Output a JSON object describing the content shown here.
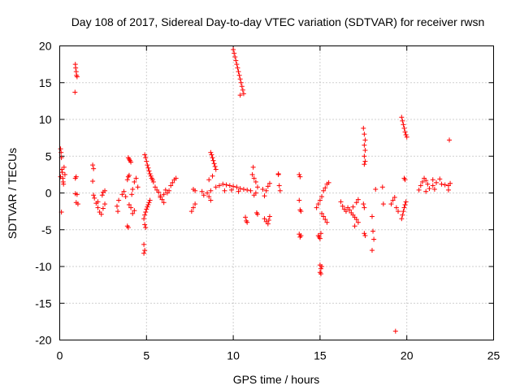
{
  "colors": {
    "series": "#ff0000",
    "axis": "#000000",
    "grid": "#a0a0a0",
    "background": "#ffffff"
  },
  "chart_data": {
    "type": "scatter",
    "title": "Day 108 of 2017, Sidereal Day-to-day VTEC variation (SDTVAR) for receiver rwsn",
    "xlabel": "GPS time / hours",
    "ylabel": "SDTVAR / TECUs",
    "xlim": [
      0,
      25
    ],
    "ylim": [
      -20,
      20
    ],
    "xticks": [
      0,
      5,
      10,
      15,
      20,
      25
    ],
    "yticks": [
      -20,
      -15,
      -10,
      -5,
      0,
      5,
      10,
      15,
      20
    ],
    "grid": true,
    "marker": "plus",
    "series": [
      {
        "name": "SDTVAR",
        "points": [
          [
            0.05,
            6.0
          ],
          [
            0.08,
            5.5
          ],
          [
            0.1,
            4.8
          ],
          [
            0.12,
            3.2
          ],
          [
            0.15,
            2.8
          ],
          [
            0.18,
            2.0
          ],
          [
            0.2,
            1.5
          ],
          [
            0.22,
            1.2
          ],
          [
            0.25,
            3.5
          ],
          [
            0.3,
            2.5
          ],
          [
            0.1,
            -2.6
          ],
          [
            0.05,
            2.2
          ],
          [
            0.9,
            17.5
          ],
          [
            0.92,
            17.0
          ],
          [
            0.95,
            16.5
          ],
          [
            0.97,
            16.0
          ],
          [
            1.0,
            15.8
          ],
          [
            0.88,
            13.7
          ],
          [
            0.9,
            2.0
          ],
          [
            0.95,
            2.2
          ],
          [
            0.9,
            -0.1
          ],
          [
            1.0,
            -0.2
          ],
          [
            0.95,
            -1.3
          ],
          [
            1.05,
            -1.5
          ],
          [
            1.9,
            3.8
          ],
          [
            1.95,
            3.3
          ],
          [
            1.9,
            1.6
          ],
          [
            1.95,
            -0.3
          ],
          [
            2.0,
            -0.7
          ],
          [
            2.1,
            -1.4
          ],
          [
            2.2,
            -2.0
          ],
          [
            2.3,
            -2.6
          ],
          [
            2.4,
            -2.9
          ],
          [
            2.5,
            -2.1
          ],
          [
            2.6,
            -1.5
          ],
          [
            2.45,
            -0.3
          ],
          [
            2.5,
            0.1
          ],
          [
            2.6,
            0.3
          ],
          [
            2.2,
            -1.2
          ],
          [
            3.3,
            -1.8
          ],
          [
            3.35,
            -2.5
          ],
          [
            3.4,
            -1.0
          ],
          [
            3.6,
            -0.2
          ],
          [
            3.7,
            0.2
          ],
          [
            3.8,
            -0.5
          ],
          [
            3.9,
            -4.5
          ],
          [
            3.95,
            -4.7
          ],
          [
            3.9,
            1.8
          ],
          [
            3.95,
            2.2
          ],
          [
            4.0,
            2.4
          ],
          [
            4.0,
            -1.6
          ],
          [
            4.1,
            -2.0
          ],
          [
            4.2,
            -2.8
          ],
          [
            4.3,
            -2.4
          ],
          [
            3.95,
            4.8
          ],
          [
            4.0,
            4.6
          ],
          [
            4.05,
            4.4
          ],
          [
            4.1,
            4.2
          ],
          [
            4.15,
            -0.2
          ],
          [
            4.2,
            0.5
          ],
          [
            4.3,
            1.5
          ],
          [
            4.4,
            2.0
          ],
          [
            4.5,
            0.8
          ],
          [
            4.9,
            5.2
          ],
          [
            4.95,
            4.8
          ],
          [
            5.0,
            4.3
          ],
          [
            5.05,
            3.8
          ],
          [
            5.1,
            3.4
          ],
          [
            5.15,
            3.0
          ],
          [
            5.2,
            2.6
          ],
          [
            5.25,
            2.3
          ],
          [
            5.3,
            2.0
          ],
          [
            5.35,
            1.8
          ],
          [
            5.4,
            1.5
          ],
          [
            4.85,
            -3.5
          ],
          [
            4.9,
            -3.0
          ],
          [
            4.95,
            -2.6
          ],
          [
            5.0,
            -2.2
          ],
          [
            5.05,
            -1.9
          ],
          [
            5.1,
            -1.6
          ],
          [
            5.15,
            -1.3
          ],
          [
            5.2,
            -1.0
          ],
          [
            4.9,
            -4.3
          ],
          [
            4.95,
            -4.7
          ],
          [
            4.85,
            -7.0
          ],
          [
            4.9,
            -7.8
          ],
          [
            4.85,
            -8.2
          ],
          [
            5.5,
            0.8
          ],
          [
            5.6,
            0.4
          ],
          [
            5.7,
            0.1
          ],
          [
            5.8,
            -0.4
          ],
          [
            5.9,
            -0.9
          ],
          [
            6.0,
            -1.3
          ],
          [
            6.1,
            0.4
          ],
          [
            6.2,
            0.0
          ],
          [
            6.3,
            0.3
          ],
          [
            6.4,
            1.0
          ],
          [
            6.5,
            1.4
          ],
          [
            6.6,
            1.8
          ],
          [
            6.7,
            2.0
          ],
          [
            6.0,
            -0.2
          ],
          [
            5.8,
            -0.6
          ],
          [
            7.6,
            -2.5
          ],
          [
            7.7,
            -2.0
          ],
          [
            7.8,
            -1.5
          ],
          [
            7.7,
            0.5
          ],
          [
            7.8,
            0.3
          ],
          [
            8.2,
            0.2
          ],
          [
            8.3,
            -0.3
          ],
          [
            8.5,
            0.0
          ],
          [
            8.6,
            -0.5
          ],
          [
            8.7,
            -1.0
          ],
          [
            8.6,
            1.8
          ],
          [
            8.7,
            0.3
          ],
          [
            8.7,
            5.5
          ],
          [
            8.75,
            5.2
          ],
          [
            8.8,
            4.8
          ],
          [
            8.85,
            4.4
          ],
          [
            8.9,
            4.0
          ],
          [
            8.95,
            3.6
          ],
          [
            9.0,
            3.2
          ],
          [
            8.8,
            2.3
          ],
          [
            9.0,
            0.8
          ],
          [
            9.2,
            1.0
          ],
          [
            9.4,
            1.2
          ],
          [
            9.6,
            1.1
          ],
          [
            9.8,
            1.0
          ],
          [
            10.0,
            0.9
          ],
          [
            10.2,
            0.8
          ],
          [
            10.4,
            0.6
          ],
          [
            10.6,
            0.5
          ],
          [
            10.8,
            0.4
          ],
          [
            11.0,
            0.3
          ],
          [
            9.5,
            0.3
          ],
          [
            9.9,
            0.4
          ],
          [
            10.3,
            0.2
          ],
          [
            10.0,
            19.5
          ],
          [
            10.05,
            19.0
          ],
          [
            10.1,
            18.5
          ],
          [
            10.15,
            18.0
          ],
          [
            10.2,
            17.5
          ],
          [
            10.25,
            17.0
          ],
          [
            10.3,
            16.5
          ],
          [
            10.35,
            16.0
          ],
          [
            10.4,
            15.5
          ],
          [
            10.45,
            15.0
          ],
          [
            10.5,
            14.5
          ],
          [
            10.55,
            14.0
          ],
          [
            10.6,
            13.5
          ],
          [
            10.4,
            13.3
          ],
          [
            10.7,
            -3.3
          ],
          [
            10.75,
            -3.8
          ],
          [
            10.8,
            -4.0
          ],
          [
            11.1,
            2.5
          ],
          [
            11.15,
            3.5
          ],
          [
            11.2,
            2.0
          ],
          [
            11.3,
            1.5
          ],
          [
            11.2,
            -0.3
          ],
          [
            11.3,
            0.0
          ],
          [
            11.4,
            0.8
          ],
          [
            11.35,
            -2.7
          ],
          [
            11.4,
            -2.9
          ],
          [
            11.7,
            0.5
          ],
          [
            11.8,
            -0.4
          ],
          [
            11.9,
            0.3
          ],
          [
            12.0,
            0.9
          ],
          [
            12.1,
            1.3
          ],
          [
            11.8,
            -3.5
          ],
          [
            11.9,
            -3.9
          ],
          [
            12.0,
            -4.2
          ],
          [
            12.05,
            -3.7
          ],
          [
            12.1,
            -3.2
          ],
          [
            12.6,
            2.5
          ],
          [
            12.65,
            1.0
          ],
          [
            12.7,
            0.3
          ],
          [
            12.6,
            2.6
          ],
          [
            13.8,
            2.5
          ],
          [
            13.85,
            2.2
          ],
          [
            13.8,
            -1.0
          ],
          [
            13.85,
            -2.3
          ],
          [
            13.9,
            -2.5
          ],
          [
            13.8,
            -5.6
          ],
          [
            13.85,
            -6.0
          ],
          [
            13.9,
            -5.8
          ],
          [
            14.8,
            -2.0
          ],
          [
            14.9,
            -1.5
          ],
          [
            15.0,
            -1.0
          ],
          [
            15.1,
            -0.5
          ],
          [
            15.2,
            0.3
          ],
          [
            15.3,
            0.7
          ],
          [
            15.4,
            1.2
          ],
          [
            15.5,
            1.4
          ],
          [
            15.1,
            -2.8
          ],
          [
            15.2,
            -3.2
          ],
          [
            15.3,
            -3.6
          ],
          [
            15.4,
            -4.0
          ],
          [
            14.9,
            -5.8
          ],
          [
            14.95,
            -6.0
          ],
          [
            15.0,
            -6.2
          ],
          [
            15.05,
            -5.5
          ],
          [
            15.0,
            -9.8
          ],
          [
            15.05,
            -10.3
          ],
          [
            15.0,
            -10.8
          ],
          [
            15.05,
            -11.0
          ],
          [
            15.1,
            -10.0
          ],
          [
            16.2,
            -1.2
          ],
          [
            16.3,
            -1.8
          ],
          [
            16.4,
            -2.2
          ],
          [
            16.5,
            -2.5
          ],
          [
            16.6,
            -2.0
          ],
          [
            16.7,
            -2.3
          ],
          [
            16.8,
            -2.7
          ],
          [
            16.9,
            -3.0
          ],
          [
            17.0,
            -3.3
          ],
          [
            17.1,
            -3.6
          ],
          [
            17.2,
            -4.0
          ],
          [
            17.1,
            -1.3
          ],
          [
            17.2,
            -0.9
          ],
          [
            16.9,
            -1.9
          ],
          [
            17.0,
            -4.5
          ],
          [
            17.5,
            8.8
          ],
          [
            17.55,
            8.0
          ],
          [
            17.6,
            7.2
          ],
          [
            17.55,
            6.5
          ],
          [
            17.6,
            5.8
          ],
          [
            17.55,
            5.0
          ],
          [
            17.6,
            4.3
          ],
          [
            17.55,
            3.9
          ],
          [
            17.5,
            -1.5
          ],
          [
            17.55,
            -2.0
          ],
          [
            17.6,
            -5.8
          ],
          [
            17.55,
            -5.5
          ],
          [
            18.0,
            -3.2
          ],
          [
            18.05,
            -5.2
          ],
          [
            18.1,
            -6.3
          ],
          [
            18.0,
            -7.8
          ],
          [
            18.2,
            0.5
          ],
          [
            18.6,
            0.8
          ],
          [
            18.65,
            -1.5
          ],
          [
            19.1,
            -1.5
          ],
          [
            19.2,
            -1.0
          ],
          [
            19.3,
            -0.6
          ],
          [
            19.4,
            -2.0
          ],
          [
            19.5,
            -2.5
          ],
          [
            19.35,
            -18.8
          ],
          [
            19.7,
            10.3
          ],
          [
            19.75,
            9.8
          ],
          [
            19.8,
            9.3
          ],
          [
            19.85,
            8.8
          ],
          [
            19.9,
            8.3
          ],
          [
            19.95,
            7.9
          ],
          [
            20.0,
            7.6
          ],
          [
            19.7,
            -3.5
          ],
          [
            19.75,
            -3.0
          ],
          [
            19.8,
            -2.5
          ],
          [
            19.85,
            -2.0
          ],
          [
            19.9,
            -1.6
          ],
          [
            19.95,
            -1.2
          ],
          [
            19.85,
            2.0
          ],
          [
            19.9,
            1.8
          ],
          [
            20.7,
            0.4
          ],
          [
            20.8,
            1.0
          ],
          [
            20.9,
            1.5
          ],
          [
            21.0,
            2.0
          ],
          [
            21.1,
            1.7
          ],
          [
            21.2,
            1.2
          ],
          [
            21.1,
            0.2
          ],
          [
            21.3,
            0.6
          ],
          [
            21.5,
            1.0
          ],
          [
            21.6,
            0.5
          ],
          [
            21.5,
            1.8
          ],
          [
            21.7,
            1.4
          ],
          [
            21.9,
            1.9
          ],
          [
            22.0,
            1.2
          ],
          [
            22.2,
            1.1
          ],
          [
            22.4,
            1.0
          ],
          [
            22.5,
            1.3
          ],
          [
            22.45,
            7.2
          ],
          [
            22.4,
            0.4
          ]
        ]
      }
    ]
  }
}
